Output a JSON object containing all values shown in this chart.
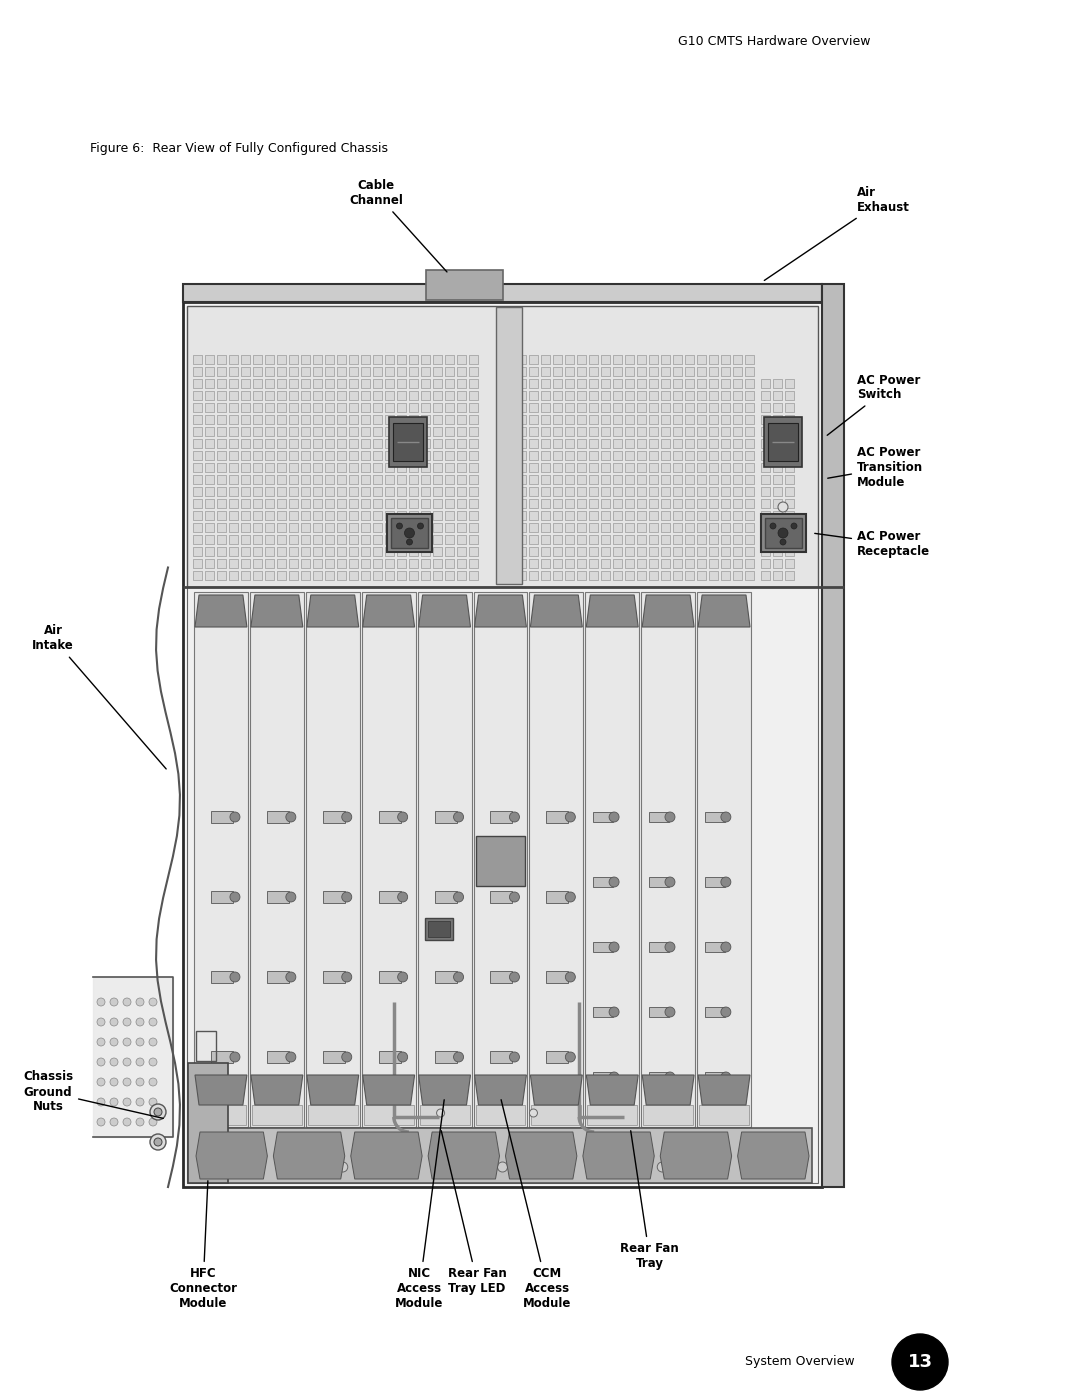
{
  "page_header": "G10 CMTS Hardware Overview",
  "figure_caption": "Figure 6:  Rear View of Fully Configured Chassis",
  "footer_text": "System Overview",
  "footer_number": "13",
  "bg_color": "#ffffff",
  "text_color": "#000000",
  "header_fontsize": 9,
  "caption_fontsize": 9,
  "footer_fontsize": 9,
  "label_fontsize": 8.5,
  "labels": {
    "cable_channel": "Cable\nChannel",
    "air_exhaust": "Air\nExhaust",
    "ac_power_switch": "AC Power\nSwitch",
    "ac_power_transition": "AC Power\nTransition\nModule",
    "ac_power_receptacle": "AC Power\nReceptacle",
    "air_intake": "Air\nIntake",
    "chassis_ground_nuts": "Chassis\nGround\nNuts",
    "hfc_connector_module": "HFC\nConnector\nModule",
    "nic_access_module": "NIC\nAccess\nModule",
    "rear_fan_tray_led": "Rear Fan\nTray LED",
    "ccm_access_module": "CCM\nAccess\nModule",
    "rear_fan_tray": "Rear Fan\nTray"
  }
}
